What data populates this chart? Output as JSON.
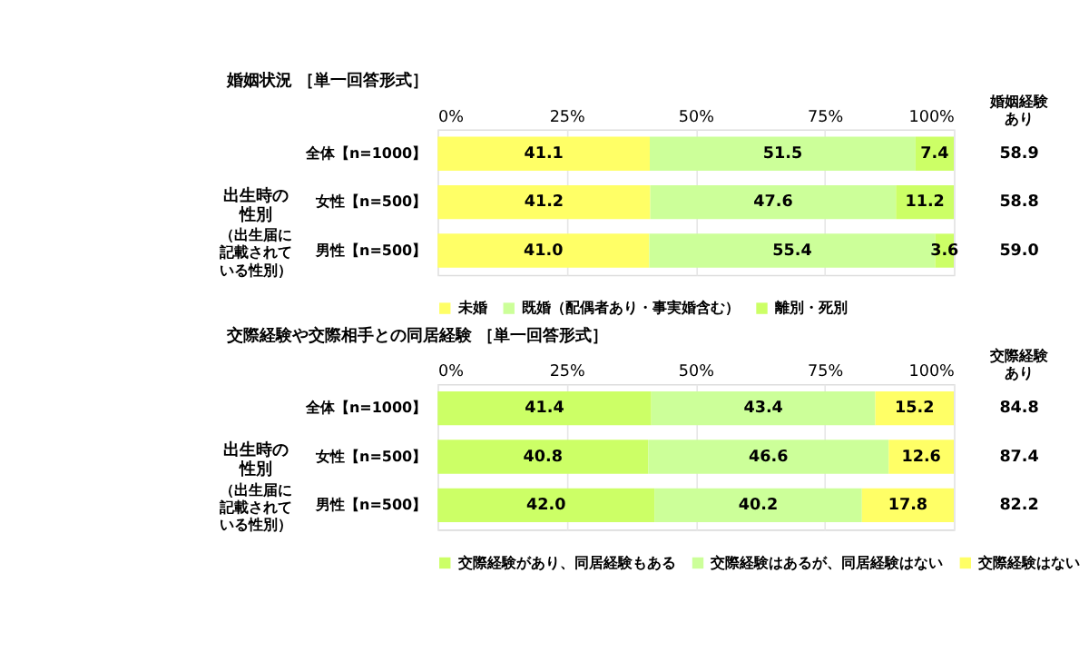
{
  "chart_data": [
    {
      "type": "bar",
      "orientation": "horizontal",
      "stacked": true,
      "title": "婚姻状況 ［単一回答形式］",
      "categories": [
        "全体【n=1000】",
        "女性【n=500】",
        "男性【n=500】"
      ],
      "series": [
        {
          "name": "未婚",
          "color": "#ffff66",
          "values": [
            41.1,
            41.2,
            41.0
          ],
          "value_labels": [
            "41.1",
            "41.2",
            "41.0"
          ]
        },
        {
          "name": "既婚（配偶者あり・事実婚含む）",
          "color": "#ccff99",
          "values": [
            51.5,
            47.6,
            55.4
          ]
        },
        {
          "name": "離別・死別",
          "color": "#ccff66",
          "values": [
            7.4,
            11.2,
            3.6
          ]
        }
      ],
      "xlim": [
        0,
        100
      ],
      "xticks": [
        {
          "value": 0,
          "label": "0%"
        },
        {
          "value": 25,
          "label": "25%"
        },
        {
          "value": 50,
          "label": "50%"
        },
        {
          "value": 75,
          "label": "75%"
        },
        {
          "value": 100,
          "label": "100%"
        }
      ],
      "grid": "x",
      "legend": "bottom",
      "data_labels": true,
      "annotations": [
        "婚姻経験あり",
        "出生時の性別",
        "（出生届に記載されている性別）",
        "58.9",
        "58.8",
        "59.0"
      ]
    },
    {
      "type": "bar",
      "orientation": "horizontal",
      "stacked": true,
      "title": "交際経験や交際相手との同居経験 ［単一回答形式］",
      "categories": [
        "全体【n=1000】",
        "女性【n=500】",
        "男性【n=500】"
      ],
      "series": [
        {
          "name": "交際経験があり、同居経験もある",
          "color": "#ccff66",
          "values": [
            41.4,
            40.8,
            42.0
          ],
          "value_labels": [
            "41.4",
            "40.8",
            "42.0"
          ]
        },
        {
          "name": "交際経験はあるが、同居経験はない",
          "color": "#ccff99",
          "values": [
            43.4,
            46.6,
            40.2
          ]
        },
        {
          "name": "交際経験はない",
          "color": "#ffff66",
          "values": [
            15.2,
            12.6,
            17.8
          ]
        }
      ],
      "xlim": [
        0,
        100
      ],
      "xticks": [
        {
          "value": 0,
          "label": "0%"
        },
        {
          "value": 25,
          "label": "25%"
        },
        {
          "value": 50,
          "label": "50%"
        },
        {
          "value": 75,
          "label": "75%"
        },
        {
          "value": 100,
          "label": "100%"
        }
      ],
      "grid": "x",
      "legend": "bottom",
      "data_labels": true,
      "annotations": [
        "交際経験あり",
        "出生時の性別",
        "（出生届に記載されている性別）",
        "84.8",
        "87.4",
        "82.2"
      ]
    }
  ]
}
